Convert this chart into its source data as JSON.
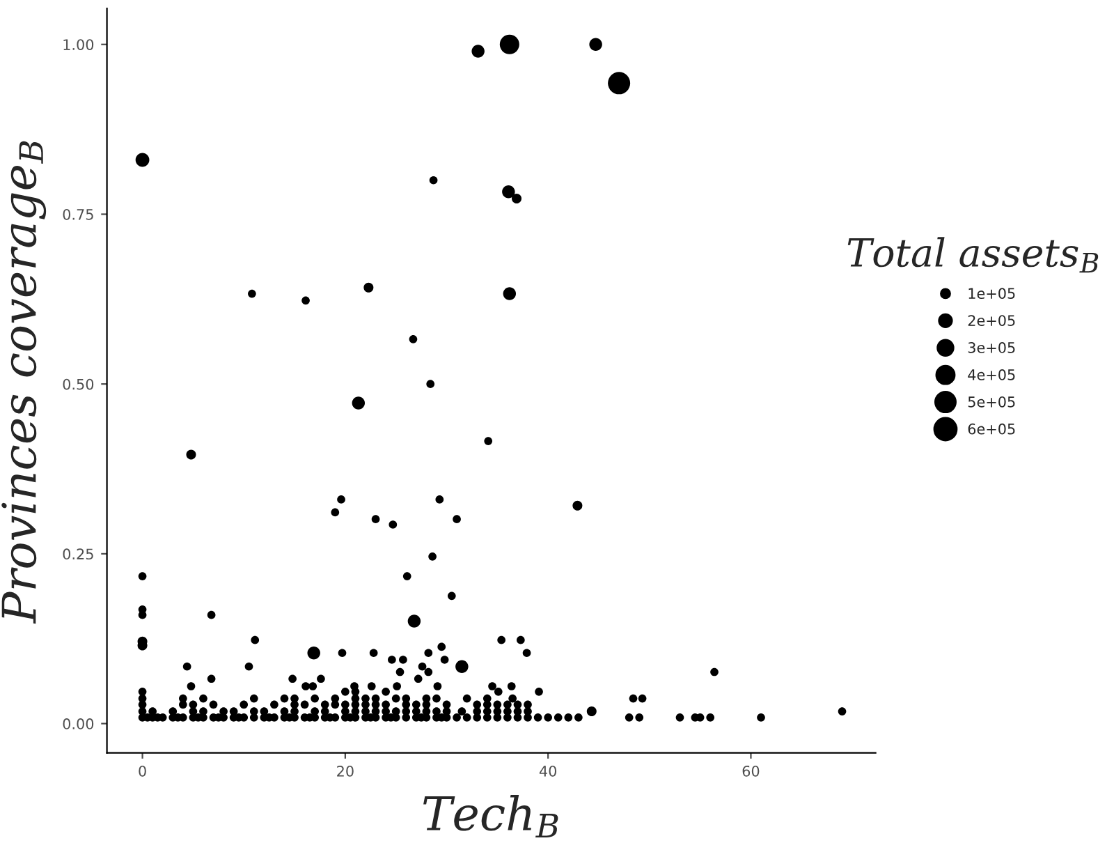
{
  "chart_data": {
    "type": "bubble",
    "xlabel": "Tech$_{B}$",
    "ylabel": "Provinces coverage$_{B}$",
    "legend_title": "Total assets$_{B}$",
    "xlim": [
      -3.5,
      72.3
    ],
    "ylim": [
      -0.043,
      1.053
    ],
    "xticks": [
      0,
      20,
      40,
      60
    ],
    "yticks": [
      {
        "value": 0,
        "label": "0.00"
      },
      {
        "value": 0.25,
        "label": "0.25"
      },
      {
        "value": 0.5,
        "label": "0.50"
      },
      {
        "value": 0.75,
        "label": "0.75"
      },
      {
        "value": 1,
        "label": "1.00"
      }
    ],
    "size_legend": [
      {
        "value": 100000,
        "label": "1e+05"
      },
      {
        "value": 200000,
        "label": "2e+05"
      },
      {
        "value": 300000,
        "label": "3e+05"
      },
      {
        "value": 400000,
        "label": "4e+05"
      },
      {
        "value": 500000,
        "label": "5e+05"
      },
      {
        "value": 600000,
        "label": "6e+05"
      }
    ],
    "marker": "circle",
    "series": [
      {
        "color": "#000000",
        "x": [
          33.1,
          36.2,
          44.7,
          47.0,
          0,
          28.7,
          36.1,
          36.9,
          10.8,
          16.1,
          22.3,
          36.2,
          26.7,
          28.4,
          21.3,
          4.8,
          34.1,
          19.6,
          19.0,
          23.0,
          24.7,
          29.3,
          31.0,
          42.9,
          0,
          0,
          0,
          0,
          0,
          6.8,
          11.1,
          4.4,
          4.8,
          6.8,
          10.5,
          16.9,
          19.7,
          22.8,
          26.1,
          28.6,
          30.5,
          26.8,
          24.6,
          25.7,
          28.2,
          29.5,
          29.8,
          31.5,
          27.6,
          28.2,
          25.4,
          27.2,
          14.8,
          17.6,
          16.1,
          16.8,
          20.9,
          22.6,
          25.1,
          29.1,
          35.4,
          37.3,
          37.9,
          34.5,
          36.4,
          35.1,
          36.5,
          39.1,
          56.4,
          48.4,
          49.3,
          44.3,
          69.0,
          0,
          0.5,
          1,
          1.5,
          2,
          3,
          3.5,
          4,
          5,
          5.5,
          6,
          7,
          7.5,
          8,
          9,
          9.5,
          10,
          11,
          12,
          12.5,
          13,
          14,
          14.5,
          15,
          16,
          16.5,
          17,
          18,
          18.5,
          19,
          20,
          20.5,
          21,
          22,
          22.5,
          23,
          24,
          24.5,
          25,
          26,
          27,
          27.5,
          28,
          29,
          29.5,
          30,
          31,
          32,
          33,
          34,
          35,
          36,
          37,
          38,
          39,
          40,
          41,
          42,
          43,
          48,
          49,
          53,
          54.5,
          55,
          56,
          61,
          0,
          1,
          3,
          5,
          6,
          8,
          9,
          11,
          12,
          14,
          15,
          17,
          18,
          20,
          21,
          22,
          23,
          24,
          25,
          26,
          27,
          28,
          29,
          30,
          31.5,
          33,
          34,
          35,
          36,
          37,
          38,
          0,
          4,
          5,
          7,
          10,
          13,
          15,
          16,
          18,
          19,
          20,
          21,
          22,
          23,
          24,
          26,
          27,
          28,
          30,
          33,
          34,
          35,
          36,
          37,
          38,
          0,
          4,
          6,
          11,
          14,
          15,
          17,
          19,
          21,
          22,
          23,
          25,
          26,
          28,
          29,
          32,
          34,
          0,
          20,
          21,
          24
        ],
        "values": [
          0.99,
          1.0,
          1.0,
          0.943,
          0.83,
          0.8,
          0.783,
          0.773,
          0.633,
          0.623,
          0.642,
          0.633,
          0.566,
          0.5,
          0.472,
          0.396,
          0.416,
          0.33,
          0.311,
          0.301,
          0.293,
          0.33,
          0.301,
          0.321,
          0.217,
          0.168,
          0.16,
          0.121,
          0.115,
          0.16,
          0.123,
          0.084,
          0.055,
          0.066,
          0.084,
          0.104,
          0.104,
          0.104,
          0.217,
          0.246,
          0.188,
          0.151,
          0.094,
          0.094,
          0.104,
          0.113,
          0.094,
          0.084,
          0.084,
          0.076,
          0.076,
          0.066,
          0.066,
          0.066,
          0.055,
          0.055,
          0.055,
          0.055,
          0.055,
          0.055,
          0.123,
          0.123,
          0.104,
          0.055,
          0.055,
          0.047,
          0.037,
          0.047,
          0.076,
          0.037,
          0.037,
          0.018,
          0.018,
          0.009,
          0.009,
          0.009,
          0.009,
          0.009,
          0.009,
          0.009,
          0.009,
          0.009,
          0.009,
          0.009,
          0.009,
          0.009,
          0.009,
          0.009,
          0.009,
          0.009,
          0.009,
          0.009,
          0.009,
          0.009,
          0.009,
          0.009,
          0.009,
          0.009,
          0.009,
          0.009,
          0.009,
          0.009,
          0.009,
          0.009,
          0.009,
          0.009,
          0.009,
          0.009,
          0.009,
          0.009,
          0.009,
          0.009,
          0.009,
          0.009,
          0.009,
          0.009,
          0.009,
          0.009,
          0.009,
          0.009,
          0.009,
          0.009,
          0.009,
          0.009,
          0.009,
          0.009,
          0.009,
          0.009,
          0.009,
          0.009,
          0.009,
          0.009,
          0.009,
          0.009,
          0.009,
          0.009,
          0.009,
          0.009,
          0.009,
          0.018,
          0.018,
          0.018,
          0.018,
          0.018,
          0.018,
          0.018,
          0.018,
          0.018,
          0.018,
          0.018,
          0.018,
          0.018,
          0.018,
          0.018,
          0.018,
          0.018,
          0.018,
          0.018,
          0.018,
          0.018,
          0.018,
          0.018,
          0.018,
          0.018,
          0.018,
          0.018,
          0.018,
          0.018,
          0.018,
          0.018,
          0.028,
          0.028,
          0.028,
          0.028,
          0.028,
          0.028,
          0.028,
          0.028,
          0.028,
          0.028,
          0.028,
          0.028,
          0.028,
          0.028,
          0.028,
          0.028,
          0.028,
          0.028,
          0.028,
          0.028,
          0.028,
          0.028,
          0.028,
          0.028,
          0.028,
          0.037,
          0.037,
          0.037,
          0.037,
          0.037,
          0.037,
          0.037,
          0.037,
          0.037,
          0.037,
          0.037,
          0.037,
          0.037,
          0.037,
          0.037,
          0.037,
          0.037,
          0.047,
          0.047,
          0.047,
          0.047
        ],
        "sizes": [
          200000,
          460000,
          200000,
          600000,
          230000,
          80000,
          200000,
          115000,
          80000,
          80000,
          115000,
          200000,
          80000,
          80000,
          200000,
          115000,
          80000,
          80000,
          80000,
          80000,
          80000,
          80000,
          80000,
          115000,
          80000,
          80000,
          80000,
          115000,
          115000,
          80000,
          80000,
          80000,
          80000,
          80000,
          80000,
          200000,
          80000,
          80000,
          80000,
          80000,
          80000,
          200000,
          80000,
          80000,
          80000,
          80000,
          80000,
          200000,
          80000,
          80000,
          80000,
          80000,
          80000,
          80000,
          80000,
          80000,
          80000,
          80000,
          80000,
          80000,
          80000,
          80000,
          80000,
          80000,
          80000,
          80000,
          80000,
          80000,
          80000,
          80000,
          80000,
          115000,
          80000,
          80000,
          80000,
          80000,
          80000,
          80000,
          80000,
          80000,
          80000,
          80000,
          80000,
          80000,
          80000,
          80000,
          80000,
          80000,
          80000,
          80000,
          80000,
          80000,
          80000,
          80000,
          80000,
          80000,
          80000,
          80000,
          80000,
          80000,
          80000,
          80000,
          80000,
          80000,
          80000,
          80000,
          80000,
          80000,
          80000,
          80000,
          80000,
          80000,
          80000,
          80000,
          80000,
          80000,
          80000,
          80000,
          80000,
          80000,
          80000,
          80000,
          80000,
          80000,
          80000,
          80000,
          80000,
          80000,
          80000,
          80000,
          80000,
          80000,
          80000,
          80000,
          80000,
          80000,
          80000,
          80000,
          80000,
          80000,
          80000,
          80000,
          80000,
          80000,
          80000,
          80000,
          80000,
          80000,
          80000,
          80000,
          80000,
          80000,
          80000,
          80000,
          80000,
          80000,
          80000,
          80000,
          80000,
          80000,
          80000,
          80000,
          80000,
          80000,
          80000,
          80000,
          80000,
          80000,
          80000,
          80000,
          80000,
          80000,
          80000,
          80000,
          80000,
          80000,
          80000,
          80000,
          80000,
          80000,
          80000,
          80000,
          80000,
          80000,
          80000,
          80000,
          80000,
          80000,
          80000,
          80000,
          80000,
          80000,
          80000,
          80000,
          80000,
          80000,
          80000,
          80000,
          80000,
          80000,
          80000,
          80000,
          80000,
          80000,
          80000,
          80000,
          80000,
          80000,
          80000,
          80000,
          80000,
          80000,
          80000,
          80000,
          80000,
          80000
        ]
      }
    ]
  }
}
